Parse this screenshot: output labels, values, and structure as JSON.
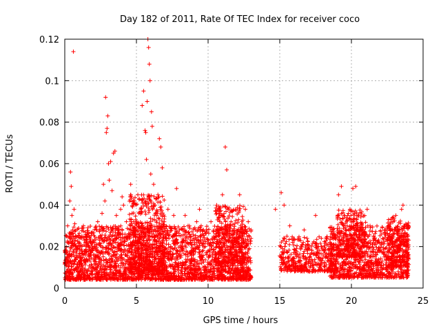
{
  "chart_data": {
    "type": "scatter",
    "title": "Day 182 of 2011, Rate Of TEC Index for receiver coco",
    "xlabel": "GPS time / hours",
    "ylabel": "ROTI / TECUs",
    "xlim": [
      0,
      25
    ],
    "ylim": [
      0,
      0.12
    ],
    "xticks": [
      0,
      5,
      10,
      15,
      20,
      25
    ],
    "xtick_labels": [
      "0",
      "5",
      "10",
      "15",
      "20",
      "25"
    ],
    "yticks": [
      0,
      0.02,
      0.04,
      0.06,
      0.08,
      0.1,
      0.12
    ],
    "ytick_labels": [
      "0",
      "0.02",
      "0.04",
      "0.06",
      "0.08",
      "0.1",
      "0.12"
    ],
    "grid": true,
    "marker": "+",
    "color": "#ff0000",
    "series": [
      {
        "name": "ROTI",
        "points": [
          [
            0.05,
            0.012
          ],
          [
            0.1,
            0.018
          ],
          [
            0.15,
            0.025
          ],
          [
            0.2,
            0.03
          ],
          [
            0.25,
            0.014
          ],
          [
            0.3,
            0.022
          ],
          [
            0.35,
            0.042
          ],
          [
            0.4,
            0.056
          ],
          [
            0.45,
            0.049
          ],
          [
            0.5,
            0.035
          ],
          [
            0.55,
            0.028
          ],
          [
            0.6,
            0.114
          ],
          [
            0.65,
            0.038
          ],
          [
            0.7,
            0.031
          ],
          [
            0.75,
            0.02
          ],
          [
            0.8,
            0.009
          ],
          [
            0.9,
            0.006
          ],
          [
            1.0,
            0.005
          ],
          [
            1.1,
            0.015
          ],
          [
            1.2,
            0.025
          ],
          [
            1.3,
            0.03
          ],
          [
            1.4,
            0.012
          ],
          [
            1.5,
            0.02
          ],
          [
            1.6,
            0.008
          ],
          [
            1.7,
            0.014
          ],
          [
            1.8,
            0.022
          ],
          [
            1.9,
            0.018
          ],
          [
            2.0,
            0.01
          ],
          [
            2.1,
            0.016
          ],
          [
            2.2,
            0.028
          ],
          [
            2.3,
            0.032
          ],
          [
            2.4,
            0.012
          ],
          [
            2.5,
            0.024
          ],
          [
            2.6,
            0.036
          ],
          [
            2.7,
            0.05
          ],
          [
            2.8,
            0.042
          ],
          [
            2.85,
            0.092
          ],
          [
            2.9,
            0.075
          ],
          [
            2.95,
            0.077
          ],
          [
            3.0,
            0.083
          ],
          [
            3.05,
            0.06
          ],
          [
            3.1,
            0.052
          ],
          [
            3.2,
            0.061
          ],
          [
            3.3,
            0.047
          ],
          [
            3.4,
            0.065
          ],
          [
            3.5,
            0.066
          ],
          [
            3.6,
            0.035
          ],
          [
            3.7,
            0.028
          ],
          [
            3.8,
            0.02
          ],
          [
            3.9,
            0.038
          ],
          [
            4.0,
            0.044
          ],
          [
            4.1,
            0.04
          ],
          [
            4.2,
            0.026
          ],
          [
            4.3,
            0.032
          ],
          [
            4.4,
            0.018
          ],
          [
            4.5,
            0.025
          ],
          [
            4.6,
            0.05
          ],
          [
            4.7,
            0.036
          ],
          [
            4.8,
            0.042
          ],
          [
            4.9,
            0.028
          ],
          [
            5.0,
            0.032
          ],
          [
            5.1,
            0.045
          ],
          [
            5.2,
            0.03
          ],
          [
            5.3,
            0.038
          ],
          [
            5.4,
            0.088
          ],
          [
            5.5,
            0.095
          ],
          [
            5.6,
            0.076
          ],
          [
            5.65,
            0.075
          ],
          [
            5.7,
            0.062
          ],
          [
            5.75,
            0.09
          ],
          [
            5.8,
            0.12
          ],
          [
            5.85,
            0.116
          ],
          [
            5.9,
            0.108
          ],
          [
            5.95,
            0.1
          ],
          [
            6.0,
            0.055
          ],
          [
            6.05,
            0.085
          ],
          [
            6.1,
            0.078
          ],
          [
            6.2,
            0.05
          ],
          [
            6.3,
            0.04
          ],
          [
            6.4,
            0.035
          ],
          [
            6.5,
            0.045
          ],
          [
            6.6,
            0.072
          ],
          [
            6.7,
            0.068
          ],
          [
            6.8,
            0.058
          ],
          [
            6.9,
            0.03
          ],
          [
            7.0,
            0.025
          ],
          [
            7.2,
            0.038
          ],
          [
            7.4,
            0.02
          ],
          [
            7.6,
            0.035
          ],
          [
            7.8,
            0.048
          ],
          [
            8.0,
            0.028
          ],
          [
            8.2,
            0.022
          ],
          [
            8.4,
            0.035
          ],
          [
            8.6,
            0.03
          ],
          [
            8.8,
            0.025
          ],
          [
            9.0,
            0.018
          ],
          [
            9.2,
            0.032
          ],
          [
            9.4,
            0.038
          ],
          [
            9.6,
            0.026
          ],
          [
            9.8,
            0.02
          ],
          [
            10.0,
            0.018
          ],
          [
            10.2,
            0.032
          ],
          [
            10.4,
            0.025
          ],
          [
            10.6,
            0.04
          ],
          [
            10.8,
            0.036
          ],
          [
            11.0,
            0.045
          ],
          [
            11.2,
            0.068
          ],
          [
            11.3,
            0.057
          ],
          [
            11.4,
            0.038
          ],
          [
            11.6,
            0.032
          ],
          [
            11.8,
            0.028
          ],
          [
            12.0,
            0.024
          ],
          [
            12.2,
            0.045
          ],
          [
            12.4,
            0.02
          ],
          [
            12.6,
            0.038
          ],
          [
            12.8,
            0.032
          ],
          [
            13.0,
            0.028
          ],
          [
            14.7,
            0.038
          ],
          [
            15.1,
            0.046
          ],
          [
            15.3,
            0.04
          ],
          [
            15.5,
            0.025
          ],
          [
            15.7,
            0.03
          ],
          [
            15.9,
            0.022
          ],
          [
            16.1,
            0.018
          ],
          [
            16.3,
            0.015
          ],
          [
            16.5,
            0.02
          ],
          [
            16.7,
            0.028
          ],
          [
            16.9,
            0.024
          ],
          [
            17.1,
            0.015
          ],
          [
            17.3,
            0.01
          ],
          [
            17.5,
            0.035
          ],
          [
            17.7,
            0.02
          ],
          [
            17.9,
            0.012
          ],
          [
            18.1,
            0.018
          ],
          [
            18.3,
            0.015
          ],
          [
            18.5,
            0.022
          ],
          [
            18.7,
            0.028
          ],
          [
            18.9,
            0.025
          ],
          [
            19.1,
            0.045
          ],
          [
            19.3,
            0.049
          ],
          [
            19.5,
            0.035
          ],
          [
            19.7,
            0.03
          ],
          [
            19.9,
            0.038
          ],
          [
            20.1,
            0.048
          ],
          [
            20.3,
            0.049
          ],
          [
            20.5,
            0.035
          ],
          [
            20.7,
            0.028
          ],
          [
            20.9,
            0.02
          ],
          [
            21.1,
            0.038
          ],
          [
            21.3,
            0.03
          ],
          [
            21.5,
            0.015
          ],
          [
            21.7,
            0.012
          ],
          [
            21.9,
            0.018
          ],
          [
            22.1,
            0.022
          ],
          [
            22.3,
            0.015
          ],
          [
            22.5,
            0.01
          ],
          [
            22.7,
            0.025
          ],
          [
            22.9,
            0.032
          ],
          [
            23.1,
            0.035
          ],
          [
            23.3,
            0.028
          ],
          [
            23.5,
            0.038
          ],
          [
            23.6,
            0.04
          ],
          [
            23.7,
            0.03
          ],
          [
            23.8,
            0.02
          ],
          [
            23.9,
            0.012
          ]
        ]
      }
    ],
    "dense_bands": [
      {
        "x_start": 0.0,
        "x_end": 13.0,
        "y_min": 0.004,
        "y_max": 0.03,
        "count": 2600
      },
      {
        "x_start": 4.5,
        "x_end": 7.0,
        "y_min": 0.008,
        "y_max": 0.045,
        "count": 500
      },
      {
        "x_start": 10.5,
        "x_end": 12.5,
        "y_min": 0.012,
        "y_max": 0.04,
        "count": 250
      },
      {
        "x_start": 15.0,
        "x_end": 19.0,
        "y_min": 0.008,
        "y_max": 0.025,
        "count": 420
      },
      {
        "x_start": 18.5,
        "x_end": 24.0,
        "y_min": 0.005,
        "y_max": 0.03,
        "count": 900
      },
      {
        "x_start": 19.0,
        "x_end": 21.0,
        "y_min": 0.015,
        "y_max": 0.038,
        "count": 250
      },
      {
        "x_start": 22.5,
        "x_end": 24.0,
        "y_min": 0.01,
        "y_max": 0.035,
        "count": 220
      }
    ]
  }
}
